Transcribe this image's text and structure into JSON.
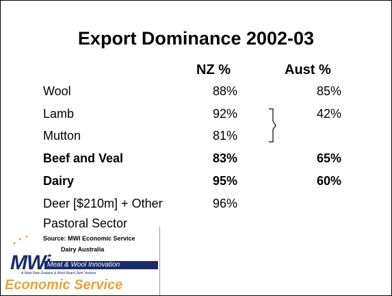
{
  "title": "Export Dominance 2002-03",
  "header": {
    "nz": "NZ %",
    "aust": "Aust %"
  },
  "table": {
    "rows": [
      {
        "label": "Wool",
        "nz": "88%",
        "aust": "85%",
        "bold": false
      },
      {
        "label": "Lamb",
        "nz": "92%",
        "aust": "42%",
        "bold": false
      },
      {
        "label": "Mutton",
        "nz": "81%",
        "bold": false
      },
      {
        "label": "Beef and Veal",
        "nz": "83%",
        "aust": "65%",
        "bold": true
      },
      {
        "label": "Dairy",
        "nz": "95%",
        "aust": "60%",
        "bold": true
      },
      {
        "label": "Deer [$210m] + Other",
        "nz": "96%",
        "bold": false
      },
      {
        "label": "Pastoral Sector",
        "bold": false
      }
    ]
  },
  "source": {
    "line1": "Source:  MWI Economic Service",
    "line2": "Dairy Australia"
  },
  "logo": {
    "mark": "MWi",
    "name": "Meat & Wool Innovation",
    "tagline": "A Meat New Zealand & Wool Board Joint Venture",
    "service": "Economic Service"
  }
}
